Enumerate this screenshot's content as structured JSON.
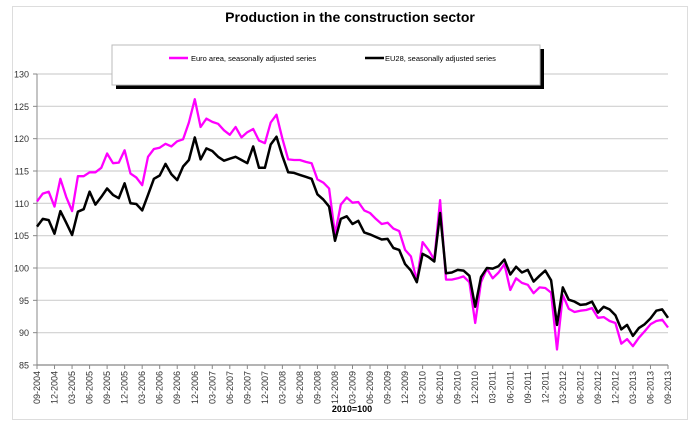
{
  "chart_data": {
    "type": "line",
    "title": "Production in the construction sector",
    "xlabel": "2010=100",
    "ylabel": "",
    "ylim": [
      85,
      130
    ],
    "yticks": [
      85,
      90,
      95,
      100,
      105,
      110,
      115,
      120,
      125,
      130
    ],
    "grid": true,
    "legend_position": "top",
    "x_start": "09-2004",
    "x_end": "09-2013",
    "x_tick_labels": [
      "09-2004",
      "12-2004",
      "03-2005",
      "06-2005",
      "09-2005",
      "12-2005",
      "03-2006",
      "06-2006",
      "09-2006",
      "12-2006",
      "03-2007",
      "06-2007",
      "09-2007",
      "12-2007",
      "03-2008",
      "06-2008",
      "09-2008",
      "12-2008",
      "03-2009",
      "06-2009",
      "09-2009",
      "12-2009",
      "03-2010",
      "06-2010",
      "09-2010",
      "12-2010",
      "03-2011",
      "06-2011",
      "09-2011",
      "12-2011",
      "03-2012",
      "06-2012",
      "09-2012",
      "12-2012",
      "03-2013",
      "06-2013",
      "09-2013"
    ],
    "series": [
      {
        "name": "Euro area, seasonally adjusted series",
        "color": "#ff00ff",
        "values": [
          110.3,
          111.5,
          111.8,
          109.5,
          113.8,
          111,
          108.8,
          114.2,
          114.2,
          114.8,
          114.8,
          115.5,
          117.7,
          116.2,
          116.3,
          118.2,
          114.6,
          114,
          112.8,
          117.2,
          118.4,
          118.6,
          119.2,
          118.8,
          119.6,
          119.9,
          122.5,
          126.1,
          121.8,
          123.1,
          122.6,
          122.3,
          121.3,
          120.6,
          121.8,
          120.2,
          121,
          121.5,
          119.7,
          119.3,
          122.5,
          123.7,
          120,
          116.8,
          116.7,
          116.7,
          116.4,
          116.2,
          113.7,
          113.2,
          112.3,
          105.2,
          109.8,
          110.9,
          110.1,
          110.2,
          108.9,
          108.5,
          107.6,
          106.8,
          107,
          106.1,
          105.7,
          102.8,
          101.8,
          98,
          104,
          102.8,
          101.3,
          110.5,
          98.2,
          98.2,
          98.4,
          98.7,
          97.8,
          91.5,
          97.8,
          99.9,
          98.4,
          99.3,
          100.6,
          96.6,
          98.4,
          97.7,
          97.4,
          96.1,
          97,
          96.9,
          96.2,
          87.4,
          95.8,
          93.7,
          93.2,
          93.4,
          93.5,
          93.8,
          92.3,
          92.4,
          91.8,
          91.5,
          88.3,
          89,
          87.9,
          89.2,
          90.2,
          91.3,
          91.8,
          92,
          90.8
        ]
      },
      {
        "name": "EU28, seasonally adjusted series",
        "color": "#000000",
        "values": [
          106.4,
          107.6,
          107.4,
          105.3,
          108.8,
          107,
          105.1,
          108.7,
          109.1,
          111.8,
          109.8,
          111,
          112.3,
          111.3,
          110.8,
          113.1,
          110,
          109.9,
          108.9,
          111.3,
          113.8,
          114.3,
          116.1,
          114.5,
          113.6,
          115.7,
          116.7,
          120.2,
          116.8,
          118.5,
          118.1,
          117.2,
          116.6,
          116.9,
          117.2,
          116.7,
          116.2,
          118.8,
          115.5,
          115.5,
          119.1,
          120.3,
          117.3,
          114.8,
          114.7,
          114.4,
          114.1,
          113.8,
          111.4,
          110.6,
          109.5,
          104.2,
          107.6,
          108,
          106.8,
          107.3,
          105.5,
          105.2,
          104.8,
          104.4,
          104.5,
          103.1,
          102.8,
          100.6,
          99.6,
          97.8,
          102.2,
          101.7,
          101,
          108.5,
          99.2,
          99.3,
          99.7,
          99.6,
          98.8,
          94,
          98.6,
          100,
          99.9,
          100.3,
          101.3,
          99,
          100.2,
          99.3,
          99.7,
          97.9,
          98.8,
          99.6,
          98.1,
          91.2,
          97,
          95.1,
          94.8,
          94.3,
          94.4,
          94.8,
          93.1,
          94,
          93.6,
          92.7,
          90.5,
          91.2,
          89.5,
          90.7,
          91.3,
          92.2,
          93.4,
          93.6,
          92.3
        ]
      }
    ]
  }
}
